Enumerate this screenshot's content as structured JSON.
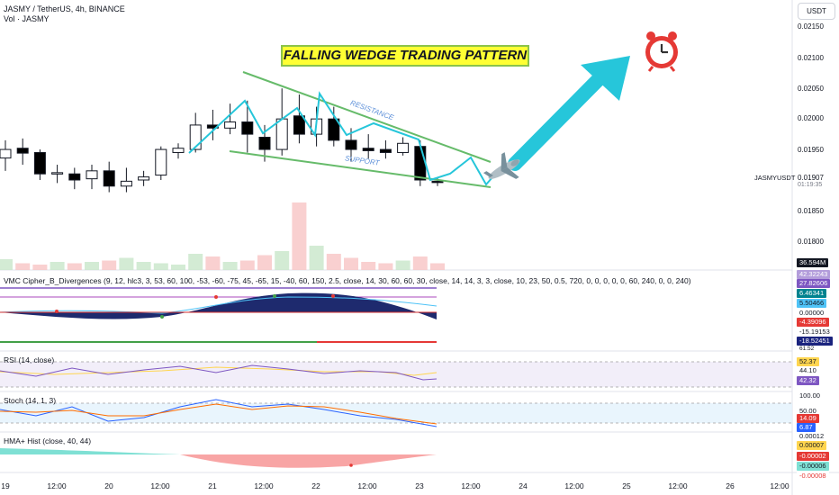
{
  "header": {
    "title": "JASMY / TetherUS, 4h, BINANCE",
    "volume_label": "Vol · JASMY"
  },
  "currency_button": "USDT",
  "annotation": {
    "pattern_title": "FALLING WEDGE TRADING PATTERN",
    "resistance": "RESISTANCE",
    "support": "SUPPORT"
  },
  "price_scale": {
    "labels": [
      "0.02150",
      "0.02100",
      "0.02050",
      "0.02000",
      "0.01950",
      "0.01850",
      "0.01800"
    ],
    "symbol_tag": "JASMYUSDT",
    "last_price": "0.01907",
    "countdown": "01:19:35",
    "volume_badge": "36.594M"
  },
  "indicators": {
    "vmc": {
      "label": "VMC Cipher_B_Divergences (9, 12, hlc3, 3, 53, 60, 100, -53, -60, -75, 45, -65, 15, -40, 60, 150, 2.5, close, 14, 30, 60, 60, 30, close, 14, 14, 3, 3, close, 10, 23, 50, 0.5, 720, 0, 0, 0, 0, 0, 60, 240, 0, 0, 240)",
      "values": [
        "42.32243",
        "27.82606",
        "6.46341",
        "5.50466",
        "0.00000",
        "-4.39096",
        "-15.19153",
        "-18.52451",
        "61.52"
      ]
    },
    "rsi": {
      "label": "RSI (14, close)",
      "values": [
        "52.37",
        "44.10",
        "42.32"
      ]
    },
    "stoch": {
      "label": "Stoch (14, 1, 3)",
      "values": [
        "100.00",
        "50.00",
        "14.09",
        "6.87"
      ]
    },
    "hma": {
      "label": "HMA+ Hist (close, 40, 44)",
      "values": [
        "0.00012",
        "0.00007",
        "-0.00002",
        "-0.00006",
        "-0.00008"
      ]
    }
  },
  "time_axis": [
    "19",
    "12:00",
    "20",
    "12:00",
    "21",
    "12:00",
    "22",
    "12:00",
    "23",
    "12:00",
    "24",
    "12:00",
    "25",
    "12:00",
    "26",
    "12:00"
  ],
  "colors": {
    "up": "#ffffff",
    "down": "#000000",
    "wedge": "#66bb6a",
    "zigzag": "#26c6da",
    "arrow": "#26c6da",
    "rsi_band": "#ede7f6",
    "stoch_band": "#e3f2fd",
    "hma_pos": "#7fe0d4",
    "hma_neg": "#f8a5a5"
  },
  "chart_data": {
    "type": "candlestick",
    "ylim": [
      0.0177,
      0.0219
    ],
    "candles": [
      {
        "t": "19 00:00",
        "o": 0.01946,
        "h": 0.01975,
        "l": 0.01925,
        "c": 0.0196
      },
      {
        "t": "19 04:00",
        "o": 0.01962,
        "h": 0.01978,
        "l": 0.01935,
        "c": 0.01954
      },
      {
        "t": "19 08:00",
        "o": 0.01955,
        "h": 0.0196,
        "l": 0.0191,
        "c": 0.0192
      },
      {
        "t": "19 12:00",
        "o": 0.0192,
        "h": 0.01935,
        "l": 0.01905,
        "c": 0.01922
      },
      {
        "t": "19 16:00",
        "o": 0.0192,
        "h": 0.0193,
        "l": 0.01895,
        "c": 0.0191
      },
      {
        "t": "19 20:00",
        "o": 0.01912,
        "h": 0.01935,
        "l": 0.01895,
        "c": 0.01925
      },
      {
        "t": "20 00:00",
        "o": 0.01925,
        "h": 0.0194,
        "l": 0.0189,
        "c": 0.019
      },
      {
        "t": "20 04:00",
        "o": 0.019,
        "h": 0.0193,
        "l": 0.0189,
        "c": 0.01908
      },
      {
        "t": "20 08:00",
        "o": 0.0191,
        "h": 0.01925,
        "l": 0.019,
        "c": 0.01915
      },
      {
        "t": "20 12:00",
        "o": 0.01918,
        "h": 0.01965,
        "l": 0.0191,
        "c": 0.0196
      },
      {
        "t": "20 16:00",
        "o": 0.01955,
        "h": 0.0197,
        "l": 0.01945,
        "c": 0.01962
      },
      {
        "t": "20 20:00",
        "o": 0.0196,
        "h": 0.0202,
        "l": 0.01955,
        "c": 0.02
      },
      {
        "t": "21 00:00",
        "o": 0.02,
        "h": 0.02025,
        "l": 0.01975,
        "c": 0.01995
      },
      {
        "t": "21 04:00",
        "o": 0.01995,
        "h": 0.02035,
        "l": 0.01985,
        "c": 0.02005
      },
      {
        "t": "21 08:00",
        "o": 0.02005,
        "h": 0.0204,
        "l": 0.01955,
        "c": 0.01985
      },
      {
        "t": "21 12:00",
        "o": 0.0198,
        "h": 0.02,
        "l": 0.0194,
        "c": 0.0196
      },
      {
        "t": "21 16:00",
        "o": 0.0196,
        "h": 0.0206,
        "l": 0.0195,
        "c": 0.0201
      },
      {
        "t": "21 20:00",
        "o": 0.02015,
        "h": 0.0205,
        "l": 0.0197,
        "c": 0.01985
      },
      {
        "t": "22 00:00",
        "o": 0.01985,
        "h": 0.0203,
        "l": 0.01965,
        "c": 0.0201
      },
      {
        "t": "22 04:00",
        "o": 0.0201,
        "h": 0.0203,
        "l": 0.01965,
        "c": 0.01975
      },
      {
        "t": "22 08:00",
        "o": 0.01975,
        "h": 0.01995,
        "l": 0.0194,
        "c": 0.0196
      },
      {
        "t": "22 12:00",
        "o": 0.01962,
        "h": 0.01985,
        "l": 0.01945,
        "c": 0.01958
      },
      {
        "t": "22 16:00",
        "o": 0.0196,
        "h": 0.01975,
        "l": 0.01945,
        "c": 0.01955
      },
      {
        "t": "22 20:00",
        "o": 0.01955,
        "h": 0.0198,
        "l": 0.0195,
        "c": 0.0197
      },
      {
        "t": "23 00:00",
        "o": 0.01965,
        "h": 0.01975,
        "l": 0.019,
        "c": 0.0191
      },
      {
        "t": "23 04:00",
        "o": 0.01908,
        "h": 0.01915,
        "l": 0.019,
        "c": 0.01907
      }
    ],
    "volume_unit": "M",
    "volume": [
      8,
      5,
      4,
      6,
      5,
      6,
      7,
      9,
      6,
      5,
      4,
      12,
      10,
      6,
      7,
      11,
      14,
      50,
      18,
      12,
      9,
      6,
      5,
      7,
      10,
      5
    ]
  }
}
